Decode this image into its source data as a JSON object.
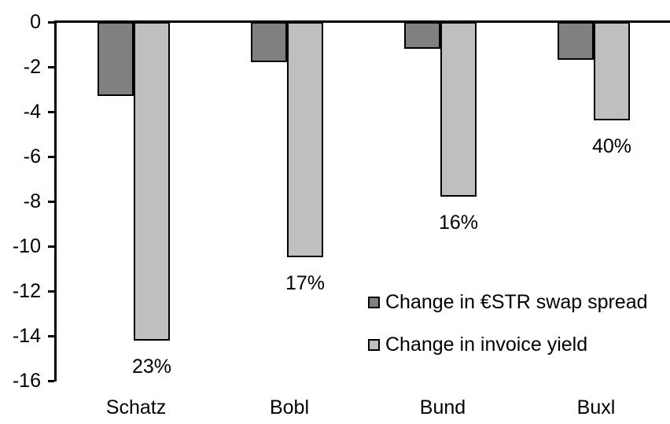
{
  "chart_data": {
    "type": "bar",
    "title": "",
    "xlabel": "",
    "ylabel": "",
    "categories": [
      "Schatz",
      "Bobl",
      "Bund",
      "Buxl"
    ],
    "series": [
      {
        "name": "Change in €STR swap spread",
        "color": "#808080",
        "values": [
          -3.3,
          -1.8,
          -1.2,
          -1.7
        ]
      },
      {
        "name": "Change in invoice yield",
        "color": "#BFBFBF",
        "values": [
          -14.2,
          -10.5,
          -7.8,
          -4.4
        ]
      }
    ],
    "bar_labels": {
      "series": "Change in invoice yield",
      "values": [
        "23%",
        "17%",
        "16%",
        "40%"
      ]
    },
    "ylim": [
      -16,
      0
    ],
    "yticks": [
      0,
      -2,
      -4,
      -6,
      -8,
      -10,
      -12,
      -14,
      -16
    ],
    "grid": false,
    "legend_position": "inside-right",
    "bar_border_color": "#000000",
    "axis_color": "#000000",
    "text_color": "#000000",
    "background_color": "#FFFFFF"
  }
}
